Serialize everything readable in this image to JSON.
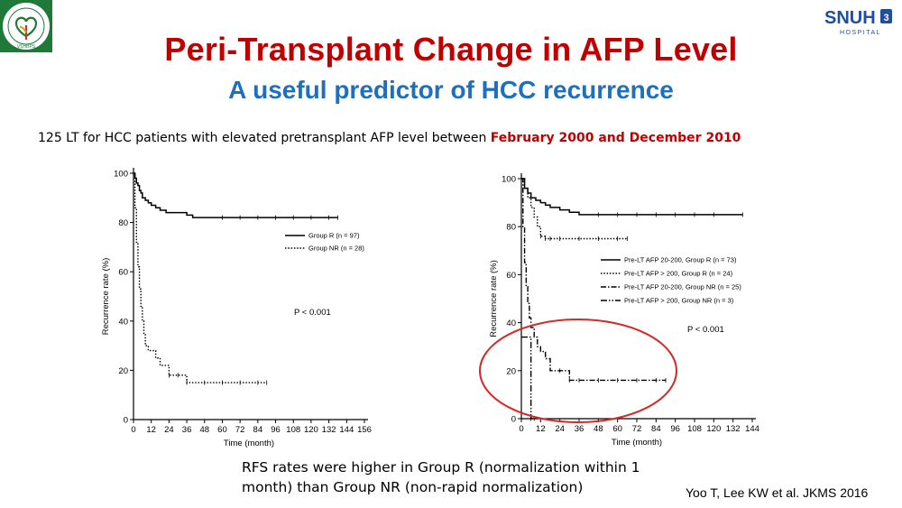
{
  "header": {
    "title": "Peri-Transplant Change in AFP Level",
    "subtitle": "A useful predictor of HCC recurrence",
    "left_logo": {
      "icon": "hospital-seal-logo",
      "text": "VSHBPS"
    },
    "right_logo": {
      "icon": "snuh-logo",
      "text": "SNUH",
      "subtext": "HOSPITAL"
    }
  },
  "intro": {
    "text": "125 LT for HCC patients with elevated pretransplant AFP level between ",
    "highlight": "February 2000 and December 2010"
  },
  "caption": {
    "text": "RFS rates were higher in Group R (normalization within 1 month) than Group NR (non-rapid normalization)"
  },
  "citation": "Yoo T, Lee KW et al. JKMS 2016",
  "colors": {
    "title": "#c00000",
    "subtitle": "#1f6fbf",
    "highlight": "#c00000",
    "annotation_circle": "#d42a2a",
    "line": "#000000"
  },
  "chart_data": [
    {
      "type": "line",
      "step": true,
      "xlabel": "Time (month)",
      "ylabel": "Recurrence rate (%)",
      "xlim": [
        0,
        156
      ],
      "ylim": [
        0,
        100
      ],
      "xticks": [
        "0",
        "12",
        "24",
        "36",
        "48",
        "60",
        "72",
        "84",
        "96",
        "108",
        "120",
        "132",
        "144",
        "156"
      ],
      "yticks": [
        "0",
        "20",
        "40",
        "60",
        "80",
        "100"
      ],
      "legend_position": "right",
      "annotation": "P < 0.001",
      "series": [
        {
          "name": "Group R (n = 97)",
          "style": "solid",
          "x": [
            0,
            1,
            2,
            3,
            4,
            5,
            6,
            8,
            10,
            12,
            15,
            18,
            22,
            26,
            30,
            36,
            40,
            48,
            60,
            72,
            84,
            96,
            108,
            120,
            132,
            138
          ],
          "y": [
            100,
            98,
            96,
            95,
            93,
            92,
            90,
            89,
            88,
            87,
            86,
            85,
            84,
            84,
            84,
            83,
            82,
            82,
            82,
            82,
            82,
            82,
            82,
            82,
            82,
            82
          ]
        },
        {
          "name": "Group NR (n = 28)",
          "style": "dotted",
          "x": [
            0,
            1,
            2,
            3,
            4,
            5,
            6,
            7,
            8,
            10,
            12,
            15,
            18,
            24,
            30,
            36,
            48,
            60,
            72,
            84,
            90
          ],
          "y": [
            100,
            86,
            72,
            62,
            53,
            46,
            40,
            35,
            30,
            28,
            28,
            25,
            22,
            18,
            18,
            15,
            15,
            15,
            15,
            15,
            15
          ]
        }
      ]
    },
    {
      "type": "line",
      "step": true,
      "xlabel": "Time (month)",
      "ylabel": "Recurrence rate (%)",
      "xlim": [
        0,
        144
      ],
      "ylim": [
        0,
        100
      ],
      "xticks": [
        "0",
        "12",
        "24",
        "36",
        "48",
        "60",
        "72",
        "84",
        "96",
        "108",
        "120",
        "132",
        "144"
      ],
      "yticks": [
        "0",
        "20",
        "40",
        "60",
        "80",
        "100"
      ],
      "legend_position": "right",
      "annotation": "P < 0.001",
      "series": [
        {
          "name": "Pre-LT AFP 20-200, Group R (n = 73)",
          "style": "solid",
          "x": [
            0,
            2,
            4,
            6,
            9,
            12,
            15,
            18,
            24,
            30,
            36,
            42,
            48,
            60,
            72,
            84,
            96,
            108,
            120,
            138
          ],
          "y": [
            100,
            96,
            94,
            92,
            91,
            90,
            89,
            88,
            87,
            86,
            85,
            85,
            85,
            85,
            85,
            85,
            85,
            85,
            85,
            85
          ]
        },
        {
          "name": "Pre-LT AFP > 200, Group R (n = 24)",
          "style": "dotted",
          "x": [
            0,
            2,
            4,
            6,
            8,
            10,
            12,
            15,
            18,
            24,
            36,
            48,
            60,
            66
          ],
          "y": [
            100,
            96,
            92,
            88,
            84,
            80,
            76,
            75,
            75,
            75,
            75,
            75,
            75,
            75
          ]
        },
        {
          "name": "Pre-LT AFP 20-200, Group NR (n = 25)",
          "style": "dashdot",
          "x": [
            0,
            1,
            2,
            3,
            4,
            5,
            6,
            8,
            10,
            12,
            15,
            18,
            24,
            30,
            36,
            48,
            60,
            72,
            84,
            90
          ],
          "y": [
            100,
            80,
            65,
            55,
            48,
            42,
            38,
            34,
            30,
            28,
            25,
            20,
            20,
            16,
            16,
            16,
            16,
            16,
            16,
            16
          ]
        },
        {
          "name": "Pre-LT AFP > 200, Group NR (n = 3)",
          "style": "dashdotdot",
          "x": [
            0,
            4,
            6,
            8
          ],
          "y": [
            34,
            34,
            0,
            0
          ]
        }
      ]
    }
  ]
}
